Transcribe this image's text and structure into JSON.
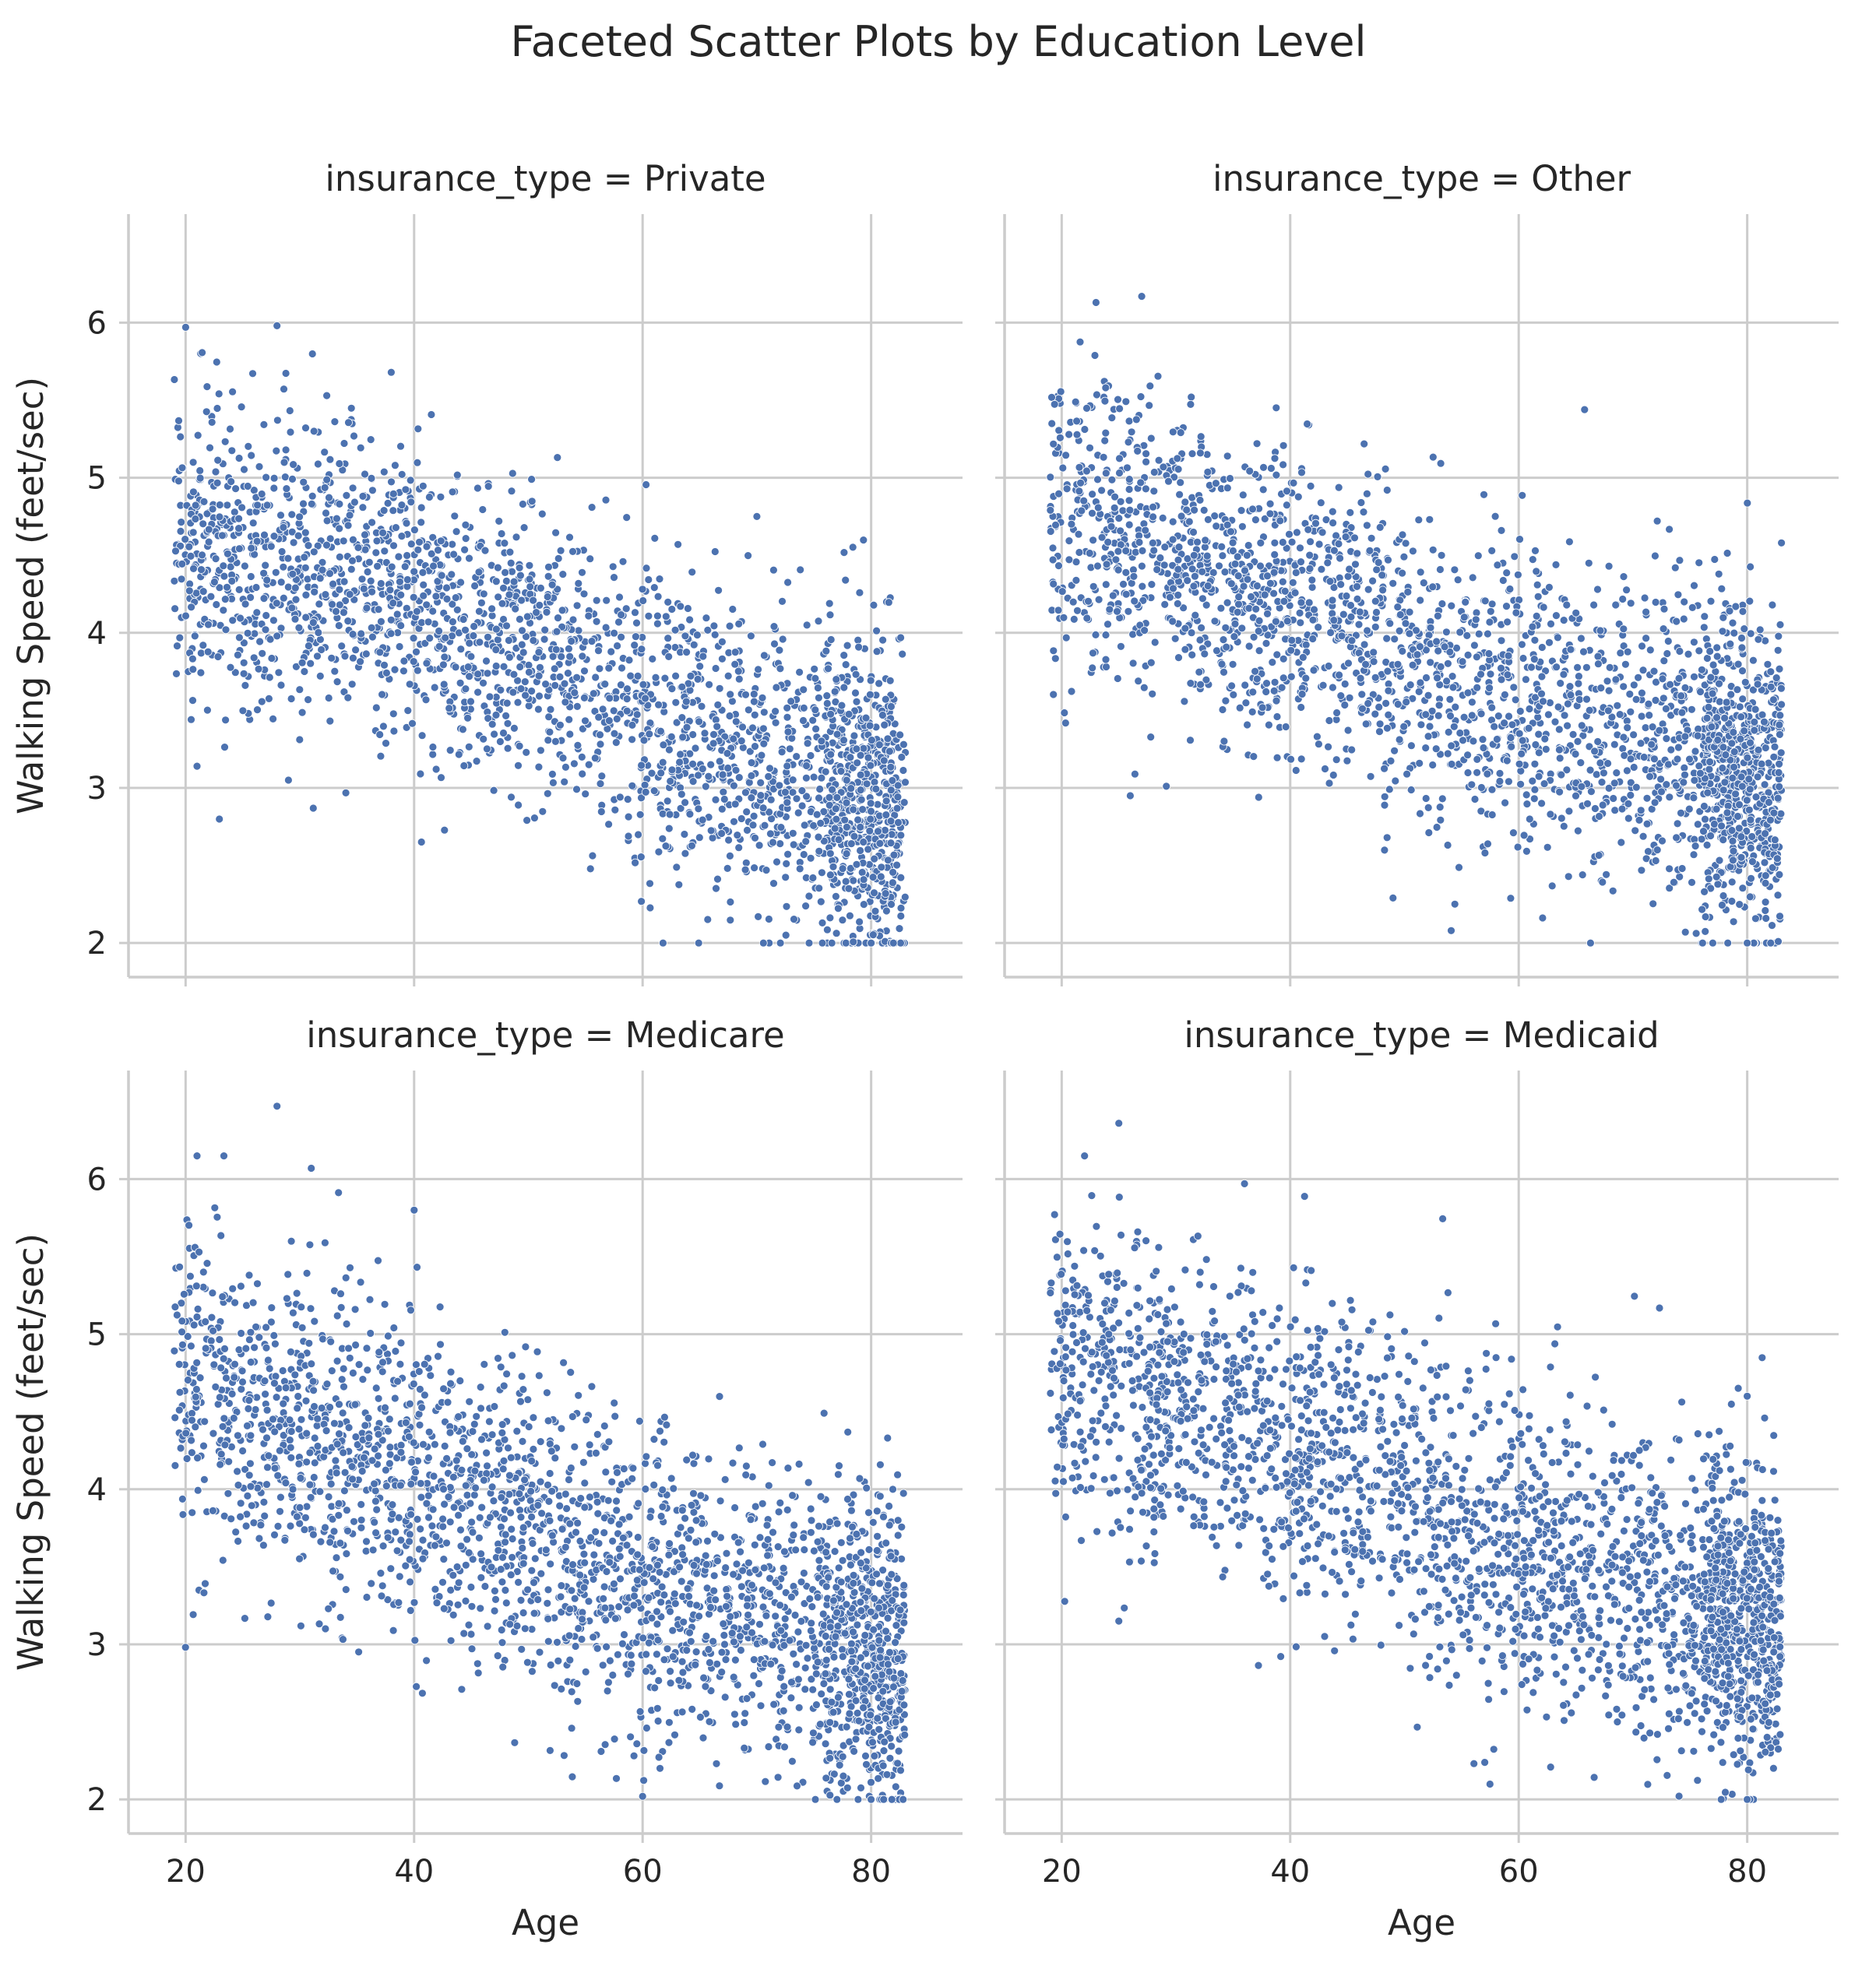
{
  "chart_data": {
    "type": "scatter",
    "title": "Faceted Scatter Plots by Education Level",
    "xlabel": "Age",
    "ylabel": "Walking Speed (feet/sec)",
    "xlim": [
      15,
      88
    ],
    "ylim": [
      1.78,
      6.7
    ],
    "xticks": [
      20,
      40,
      60,
      80
    ],
    "yticks": [
      2,
      3,
      4,
      5,
      6
    ],
    "grid": true,
    "marker_color": "#4c72b0",
    "facets": [
      {
        "title": "insurance_type = Private",
        "points_approx": 2500,
        "trend": [
          {
            "x": 20,
            "y": 4.6
          },
          {
            "x": 40,
            "y": 4.25
          },
          {
            "x": 60,
            "y": 3.5
          },
          {
            "x": 82,
            "y": 2.8
          }
        ],
        "notable_points": [
          {
            "x": 20,
            "y": 5.97
          },
          {
            "x": 28,
            "y": 5.98
          },
          {
            "x": 21,
            "y": 3.14
          },
          {
            "x": 29,
            "y": 3.05
          },
          {
            "x": 38,
            "y": 5.68
          },
          {
            "x": 70,
            "y": 4.75
          },
          {
            "x": 80,
            "y": 2.0
          }
        ]
      },
      {
        "title": "insurance_type = Other",
        "points_approx": 2500,
        "trend": [
          {
            "x": 20,
            "y": 4.75
          },
          {
            "x": 40,
            "y": 4.15
          },
          {
            "x": 60,
            "y": 3.55
          },
          {
            "x": 83,
            "y": 3.0
          }
        ],
        "notable_points": [
          {
            "x": 27,
            "y": 6.17
          },
          {
            "x": 23,
            "y": 6.13
          },
          {
            "x": 26,
            "y": 2.95
          },
          {
            "x": 49,
            "y": 2.29
          },
          {
            "x": 83,
            "y": 4.58
          },
          {
            "x": 80,
            "y": 2.0
          }
        ]
      },
      {
        "title": "insurance_type = Medicare",
        "points_approx": 2500,
        "trend": [
          {
            "x": 20,
            "y": 4.7
          },
          {
            "x": 40,
            "y": 4.1
          },
          {
            "x": 60,
            "y": 3.4
          },
          {
            "x": 82,
            "y": 2.95
          }
        ],
        "notable_points": [
          {
            "x": 28,
            "y": 6.47
          },
          {
            "x": 21,
            "y": 6.15
          },
          {
            "x": 31,
            "y": 6.07
          },
          {
            "x": 40,
            "y": 5.8
          },
          {
            "x": 60,
            "y": 2.02
          },
          {
            "x": 80,
            "y": 2.0
          }
        ]
      },
      {
        "title": "insurance_type = Medicaid",
        "points_approx": 2500,
        "trend": [
          {
            "x": 20,
            "y": 4.8
          },
          {
            "x": 40,
            "y": 4.3
          },
          {
            "x": 60,
            "y": 3.6
          },
          {
            "x": 83,
            "y": 3.1
          }
        ],
        "notable_points": [
          {
            "x": 25,
            "y": 6.36
          },
          {
            "x": 22,
            "y": 6.15
          },
          {
            "x": 36,
            "y": 5.97
          },
          {
            "x": 25,
            "y": 3.15
          },
          {
            "x": 80,
            "y": 4.6
          },
          {
            "x": 80,
            "y": 2.0
          }
        ]
      }
    ]
  }
}
